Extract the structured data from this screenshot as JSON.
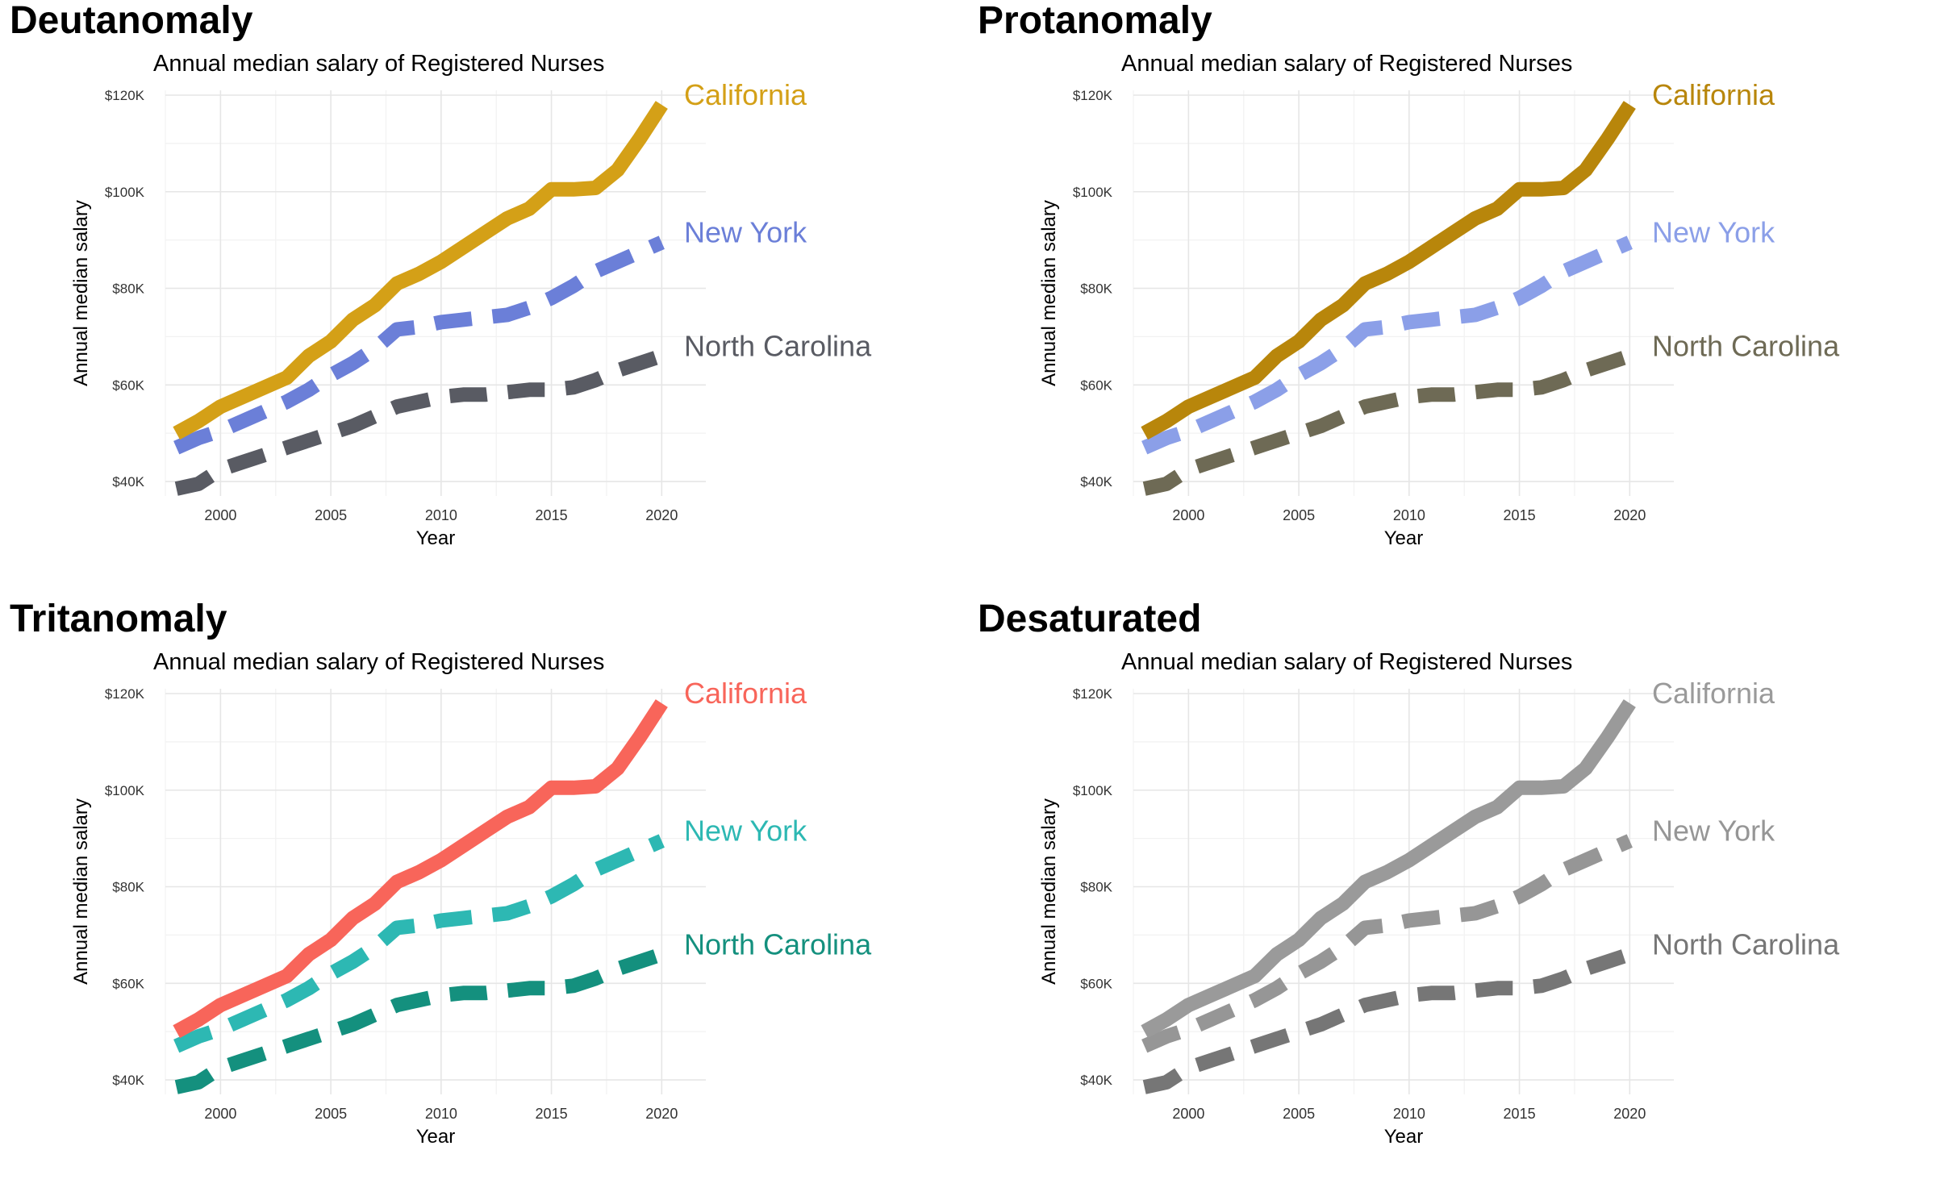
{
  "chart_data": [
    {
      "panel": "Deutanomaly",
      "type": "line",
      "title": "Annual median salary of Registered Nurses",
      "xlabel": "Year",
      "ylabel": "Annual median salary",
      "xlim": [
        1997.5,
        2022
      ],
      "ylim": [
        37000,
        121000
      ],
      "xticks": [
        2000,
        2005,
        2010,
        2015,
        2020
      ],
      "yticks": [
        40000,
        60000,
        80000,
        100000,
        120000
      ],
      "ytick_labels": [
        "$40K",
        "$60K",
        "$80K",
        "$100K",
        "$120K"
      ],
      "grid": true,
      "series": [
        {
          "name": "California",
          "color": "#D4A017",
          "dash": "solid",
          "x": [
            1998,
            1999,
            2000,
            2001,
            2002,
            2003,
            2004,
            2005,
            2006,
            2007,
            2008,
            2009,
            2010,
            2011,
            2012,
            2013,
            2014,
            2015,
            2016,
            2017,
            2018,
            2019,
            2020
          ],
          "values": [
            50000,
            52500,
            55500,
            57500,
            59500,
            61500,
            66000,
            69000,
            73500,
            76500,
            81000,
            83000,
            85500,
            88500,
            91500,
            94500,
            96500,
            100500,
            100500,
            100800,
            104500,
            111000,
            118000
          ]
        },
        {
          "name": "New York",
          "color": "#6B7FD8",
          "dash": "dashed",
          "x": [
            1998,
            1999,
            2000,
            2001,
            2002,
            2003,
            2004,
            2005,
            2006,
            2007,
            2008,
            2009,
            2010,
            2011,
            2012,
            2013,
            2014,
            2015,
            2016,
            2017,
            2018,
            2019,
            2020
          ],
          "values": [
            47000,
            49000,
            50500,
            52500,
            54500,
            56500,
            59000,
            62000,
            64500,
            67500,
            71500,
            72000,
            73000,
            73500,
            74000,
            74500,
            76000,
            78000,
            80500,
            83500,
            85500,
            87500,
            89500
          ]
        },
        {
          "name": "North Carolina",
          "color": "#595B63",
          "dash": "dashed",
          "x": [
            1998,
            1999,
            2000,
            2001,
            2002,
            2003,
            2004,
            2005,
            2006,
            2007,
            2008,
            2009,
            2010,
            2011,
            2012,
            2013,
            2014,
            2015,
            2016,
            2017,
            2018,
            2019,
            2020
          ],
          "values": [
            38500,
            39500,
            42500,
            44000,
            45500,
            47000,
            48500,
            50000,
            51500,
            53500,
            55500,
            56500,
            57500,
            58000,
            58000,
            58500,
            59000,
            59000,
            59500,
            61000,
            63000,
            64500,
            66000
          ]
        }
      ]
    },
    {
      "panel": "Protanomaly",
      "type": "line",
      "title": "Annual median salary of Registered Nurses",
      "xlabel": "Year",
      "ylabel": "Annual median salary",
      "xlim": [
        1997.5,
        2022
      ],
      "ylim": [
        37000,
        121000
      ],
      "xticks": [
        2000,
        2005,
        2010,
        2015,
        2020
      ],
      "yticks": [
        40000,
        60000,
        80000,
        100000,
        120000
      ],
      "ytick_labels": [
        "$40K",
        "$60K",
        "$80K",
        "$100K",
        "$120K"
      ],
      "grid": true,
      "series": [
        {
          "name": "California",
          "color": "#B8860B",
          "dash": "solid",
          "x": [
            1998,
            1999,
            2000,
            2001,
            2002,
            2003,
            2004,
            2005,
            2006,
            2007,
            2008,
            2009,
            2010,
            2011,
            2012,
            2013,
            2014,
            2015,
            2016,
            2017,
            2018,
            2019,
            2020
          ],
          "values": [
            50000,
            52500,
            55500,
            57500,
            59500,
            61500,
            66000,
            69000,
            73500,
            76500,
            81000,
            83000,
            85500,
            88500,
            91500,
            94500,
            96500,
            100500,
            100500,
            100800,
            104500,
            111000,
            118000
          ]
        },
        {
          "name": "New York",
          "color": "#8B9FE8",
          "dash": "dashed",
          "x": [
            1998,
            1999,
            2000,
            2001,
            2002,
            2003,
            2004,
            2005,
            2006,
            2007,
            2008,
            2009,
            2010,
            2011,
            2012,
            2013,
            2014,
            2015,
            2016,
            2017,
            2018,
            2019,
            2020
          ],
          "values": [
            47000,
            49000,
            50500,
            52500,
            54500,
            56500,
            59000,
            62000,
            64500,
            67500,
            71500,
            72000,
            73000,
            73500,
            74000,
            74500,
            76000,
            78000,
            80500,
            83500,
            85500,
            87500,
            89500
          ]
        },
        {
          "name": "North Carolina",
          "color": "#6E6A55",
          "dash": "dashed",
          "x": [
            1998,
            1999,
            2000,
            2001,
            2002,
            2003,
            2004,
            2005,
            2006,
            2007,
            2008,
            2009,
            2010,
            2011,
            2012,
            2013,
            2014,
            2015,
            2016,
            2017,
            2018,
            2019,
            2020
          ],
          "values": [
            38500,
            39500,
            42500,
            44000,
            45500,
            47000,
            48500,
            50000,
            51500,
            53500,
            55500,
            56500,
            57500,
            58000,
            58000,
            58500,
            59000,
            59000,
            59500,
            61000,
            63000,
            64500,
            66000
          ]
        }
      ]
    },
    {
      "panel": "Tritanomaly",
      "type": "line",
      "title": "Annual median salary of Registered Nurses",
      "xlabel": "Year",
      "ylabel": "Annual median salary",
      "xlim": [
        1997.5,
        2022
      ],
      "ylim": [
        37000,
        121000
      ],
      "xticks": [
        2000,
        2005,
        2010,
        2015,
        2020
      ],
      "yticks": [
        40000,
        60000,
        80000,
        100000,
        120000
      ],
      "ytick_labels": [
        "$40K",
        "$60K",
        "$80K",
        "$100K",
        "$120K"
      ],
      "grid": true,
      "series": [
        {
          "name": "California",
          "color": "#F8655A",
          "dash": "solid",
          "x": [
            1998,
            1999,
            2000,
            2001,
            2002,
            2003,
            2004,
            2005,
            2006,
            2007,
            2008,
            2009,
            2010,
            2011,
            2012,
            2013,
            2014,
            2015,
            2016,
            2017,
            2018,
            2019,
            2020
          ],
          "values": [
            50000,
            52500,
            55500,
            57500,
            59500,
            61500,
            66000,
            69000,
            73500,
            76500,
            81000,
            83000,
            85500,
            88500,
            91500,
            94500,
            96500,
            100500,
            100500,
            100800,
            104500,
            111000,
            118000
          ]
        },
        {
          "name": "New York",
          "color": "#2DB8B3",
          "dash": "dashed",
          "x": [
            1998,
            1999,
            2000,
            2001,
            2002,
            2003,
            2004,
            2005,
            2006,
            2007,
            2008,
            2009,
            2010,
            2011,
            2012,
            2013,
            2014,
            2015,
            2016,
            2017,
            2018,
            2019,
            2020
          ],
          "values": [
            47000,
            49000,
            50500,
            52500,
            54500,
            56500,
            59000,
            62000,
            64500,
            67500,
            71500,
            72000,
            73000,
            73500,
            74000,
            74500,
            76000,
            78000,
            80500,
            83500,
            85500,
            87500,
            89500
          ]
        },
        {
          "name": "North Carolina",
          "color": "#14907E",
          "dash": "dashed",
          "x": [
            1998,
            1999,
            2000,
            2001,
            2002,
            2003,
            2004,
            2005,
            2006,
            2007,
            2008,
            2009,
            2010,
            2011,
            2012,
            2013,
            2014,
            2015,
            2016,
            2017,
            2018,
            2019,
            2020
          ],
          "values": [
            38500,
            39500,
            42500,
            44000,
            45500,
            47000,
            48500,
            50000,
            51500,
            53500,
            55500,
            56500,
            57500,
            58000,
            58000,
            58500,
            59000,
            59000,
            59500,
            61000,
            63000,
            64500,
            66000
          ]
        }
      ]
    },
    {
      "panel": "Desaturated",
      "type": "line",
      "title": "Annual median salary of Registered Nurses",
      "xlabel": "Year",
      "ylabel": "Annual median salary",
      "xlim": [
        1997.5,
        2022
      ],
      "ylim": [
        37000,
        121000
      ],
      "xticks": [
        2000,
        2005,
        2010,
        2015,
        2020
      ],
      "yticks": [
        40000,
        60000,
        80000,
        100000,
        120000
      ],
      "ytick_labels": [
        "$40K",
        "$60K",
        "$80K",
        "$100K",
        "$120K"
      ],
      "grid": true,
      "series": [
        {
          "name": "California",
          "color": "#9A9A9A",
          "dash": "solid",
          "x": [
            1998,
            1999,
            2000,
            2001,
            2002,
            2003,
            2004,
            2005,
            2006,
            2007,
            2008,
            2009,
            2010,
            2011,
            2012,
            2013,
            2014,
            2015,
            2016,
            2017,
            2018,
            2019,
            2020
          ],
          "values": [
            50000,
            52500,
            55500,
            57500,
            59500,
            61500,
            66000,
            69000,
            73500,
            76500,
            81000,
            83000,
            85500,
            88500,
            91500,
            94500,
            96500,
            100500,
            100500,
            100800,
            104500,
            111000,
            118000
          ]
        },
        {
          "name": "New York",
          "color": "#969696",
          "dash": "dashed",
          "x": [
            1998,
            1999,
            2000,
            2001,
            2002,
            2003,
            2004,
            2005,
            2006,
            2007,
            2008,
            2009,
            2010,
            2011,
            2012,
            2013,
            2014,
            2015,
            2016,
            2017,
            2018,
            2019,
            2020
          ],
          "values": [
            47000,
            49000,
            50500,
            52500,
            54500,
            56500,
            59000,
            62000,
            64500,
            67500,
            71500,
            72000,
            73000,
            73500,
            74000,
            74500,
            76000,
            78000,
            80500,
            83500,
            85500,
            87500,
            89500
          ]
        },
        {
          "name": "North Carolina",
          "color": "#767676",
          "dash": "dashed",
          "x": [
            1998,
            1999,
            2000,
            2001,
            2002,
            2003,
            2004,
            2005,
            2006,
            2007,
            2008,
            2009,
            2010,
            2011,
            2012,
            2013,
            2014,
            2015,
            2016,
            2017,
            2018,
            2019,
            2020
          ],
          "values": [
            38500,
            39500,
            42500,
            44000,
            45500,
            47000,
            48500,
            50000,
            51500,
            53500,
            55500,
            56500,
            57500,
            58000,
            58000,
            58500,
            59000,
            59000,
            59500,
            61000,
            63000,
            64500,
            66000
          ]
        }
      ]
    }
  ]
}
